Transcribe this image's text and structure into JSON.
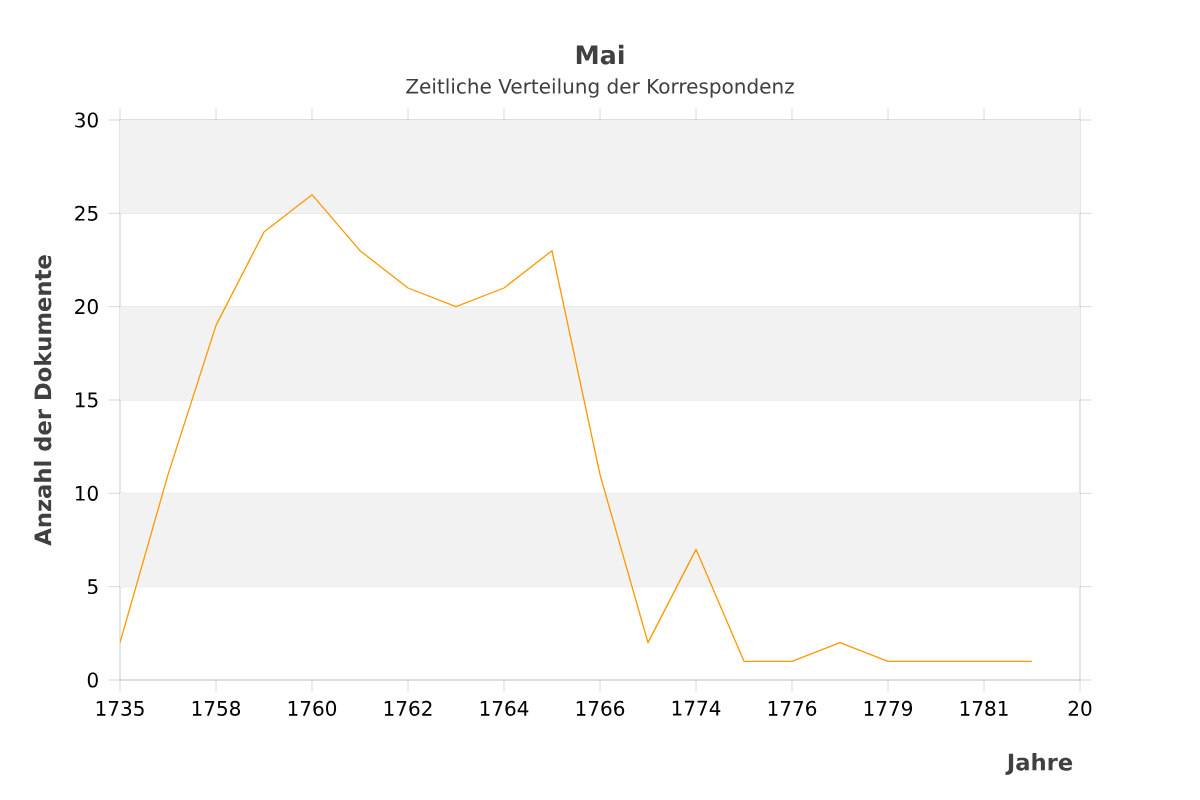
{
  "chart_data": {
    "type": "line",
    "title": "Mai",
    "subtitle": "Zeitliche Verteilung der Korrespondenz",
    "xlabel": "Jahre",
    "ylabel": "Anzahl der Dokumente",
    "categories": [
      "1735",
      null,
      "1758",
      null,
      "1760",
      null,
      "1762",
      null,
      "1764",
      null,
      "1766",
      null,
      "1774",
      null,
      "1776",
      null,
      "1779",
      null,
      "1781",
      null,
      "20"
    ],
    "values": [
      2,
      11,
      19,
      24,
      26,
      23,
      21,
      20,
      21,
      23,
      11,
      2,
      7,
      1,
      1,
      2,
      1,
      1,
      1,
      1,
      null
    ],
    "color": "#ff9900",
    "ylim": [
      0,
      30
    ],
    "yticks": [
      0,
      5,
      10,
      15,
      20,
      25,
      30
    ],
    "grid": "y",
    "bands": [
      {
        "axis": "y",
        "from": 5,
        "to": 10,
        "color": "#f2f2f2"
      },
      {
        "axis": "y",
        "from": 15,
        "to": 20,
        "color": "#f2f2f2"
      },
      {
        "axis": "y",
        "from": 25,
        "to": 30,
        "color": "#f2f2f2"
      }
    ]
  }
}
